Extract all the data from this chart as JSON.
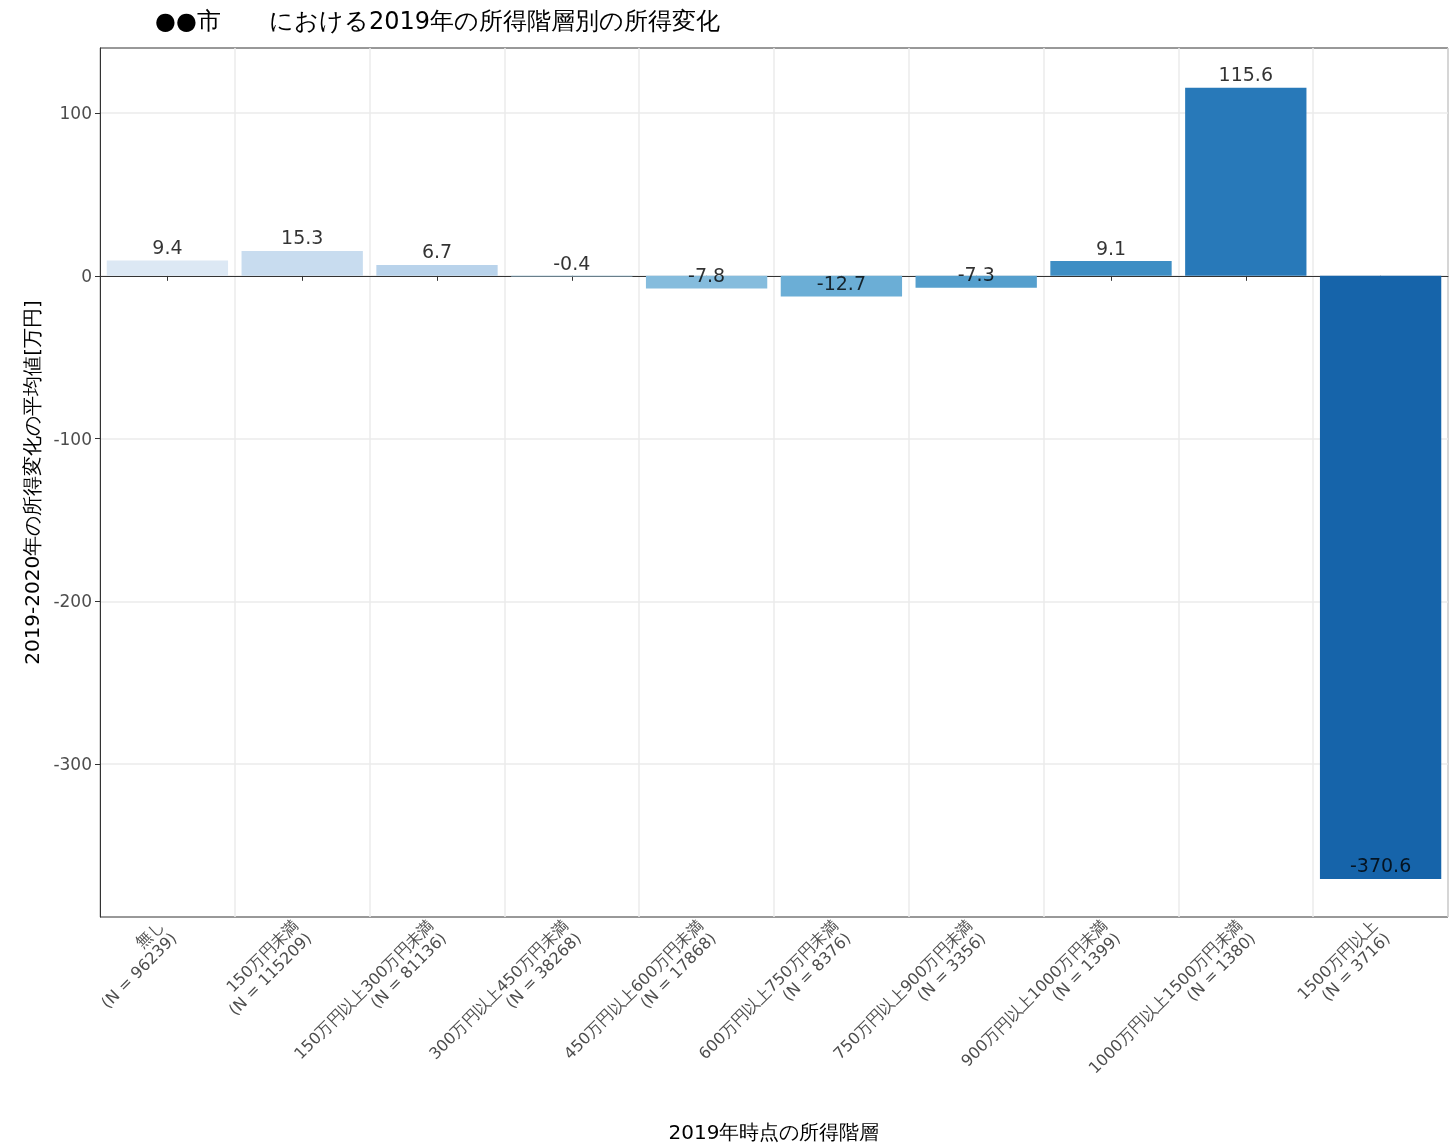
{
  "chart_data": {
    "type": "bar",
    "title": "●●市　　における2019年の所得階層別の所得変化",
    "xlabel": "2019年時点の所得階層",
    "ylabel": "2019-2020年の所得変化の平均値[万円]",
    "categories": [
      "無し\n(N = 96239)",
      "150万円未満\n(N = 115209)",
      "150万円以上300万円未満\n(N = 81136)",
      "300万円以上450万円未満\n(N = 38268)",
      "450万円以上600万円未満\n(N = 17868)",
      "600万円以上750万円未満\n(N = 8376)",
      "750万円以上900万円未満\n(N = 3356)",
      "900万円以上1000万円未満\n(N = 1399)",
      "1000万円以上1500万円未満\n(N = 1380)",
      "1500万円以上\n(N = 3716)"
    ],
    "values": [
      9.4,
      15.3,
      6.7,
      -0.4,
      -7.8,
      -12.7,
      -7.3,
      9.1,
      115.6,
      -370.6
    ],
    "colors": [
      "#dce8f4",
      "#c8dcef",
      "#b9d3eb",
      "#a0cae2",
      "#85bcdd",
      "#6baed6",
      "#559fcd",
      "#3e8ec4",
      "#2879b9",
      "#1664aa"
    ],
    "ylim": [
      -394,
      140
    ],
    "yticks": [
      -300,
      -200,
      -100,
      0,
      100
    ],
    "grid": true,
    "data_labels": true
  }
}
